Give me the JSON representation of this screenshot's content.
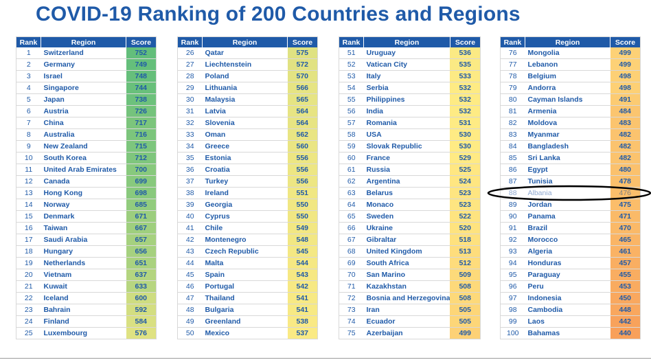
{
  "title": "COVID-19 Ranking of 200 Countries and Regions",
  "headers": {
    "rank": "Rank",
    "region": "Region",
    "score": "Score"
  },
  "tables": [
    {
      "rows": [
        {
          "rank": "1",
          "region": "Switzerland",
          "score": "752"
        },
        {
          "rank": "2",
          "region": "Germany",
          "score": "749"
        },
        {
          "rank": "3",
          "region": "Israel",
          "score": "748"
        },
        {
          "rank": "4",
          "region": "Singapore",
          "score": "744"
        },
        {
          "rank": "5",
          "region": "Japan",
          "score": "738"
        },
        {
          "rank": "6",
          "region": "Austria",
          "score": "726"
        },
        {
          "rank": "7",
          "region": "China",
          "score": "717"
        },
        {
          "rank": "8",
          "region": "Australia",
          "score": "716"
        },
        {
          "rank": "9",
          "region": "New Zealand",
          "score": "715"
        },
        {
          "rank": "10",
          "region": "South Korea",
          "score": "712"
        },
        {
          "rank": "11",
          "region": "United Arab Emirates",
          "score": "700"
        },
        {
          "rank": "12",
          "region": "Canada",
          "score": "699"
        },
        {
          "rank": "13",
          "region": "Hong Kong",
          "score": "698"
        },
        {
          "rank": "14",
          "region": "Norway",
          "score": "685"
        },
        {
          "rank": "15",
          "region": "Denmark",
          "score": "671"
        },
        {
          "rank": "16",
          "region": "Taiwan",
          "score": "667"
        },
        {
          "rank": "17",
          "region": "Saudi Arabia",
          "score": "657"
        },
        {
          "rank": "18",
          "region": "Hungary",
          "score": "656"
        },
        {
          "rank": "19",
          "region": "Netherlands",
          "score": "651"
        },
        {
          "rank": "20",
          "region": "Vietnam",
          "score": "637"
        },
        {
          "rank": "21",
          "region": "Kuwait",
          "score": "633"
        },
        {
          "rank": "22",
          "region": "Iceland",
          "score": "600"
        },
        {
          "rank": "23",
          "region": "Bahrain",
          "score": "592"
        },
        {
          "rank": "24",
          "region": "Finland",
          "score": "584"
        },
        {
          "rank": "25",
          "region": "Luxembourg",
          "score": "576"
        }
      ]
    },
    {
      "rows": [
        {
          "rank": "26",
          "region": "Qatar",
          "score": "575"
        },
        {
          "rank": "27",
          "region": "Liechtenstein",
          "score": "572"
        },
        {
          "rank": "28",
          "region": "Poland",
          "score": "570"
        },
        {
          "rank": "29",
          "region": "Lithuania",
          "score": "566"
        },
        {
          "rank": "30",
          "region": "Malaysia",
          "score": "565"
        },
        {
          "rank": "31",
          "region": "Latvia",
          "score": "564"
        },
        {
          "rank": "32",
          "region": "Slovenia",
          "score": "564"
        },
        {
          "rank": "33",
          "region": "Oman",
          "score": "562"
        },
        {
          "rank": "34",
          "region": "Greece",
          "score": "560"
        },
        {
          "rank": "35",
          "region": "Estonia",
          "score": "556"
        },
        {
          "rank": "36",
          "region": "Croatia",
          "score": "556"
        },
        {
          "rank": "37",
          "region": "Turkey",
          "score": "556"
        },
        {
          "rank": "38",
          "region": "Ireland",
          "score": "551"
        },
        {
          "rank": "39",
          "region": "Georgia",
          "score": "550"
        },
        {
          "rank": "40",
          "region": "Cyprus",
          "score": "550"
        },
        {
          "rank": "41",
          "region": "Chile",
          "score": "549"
        },
        {
          "rank": "42",
          "region": "Montenegro",
          "score": "548"
        },
        {
          "rank": "43",
          "region": "Czech Republic",
          "score": "545"
        },
        {
          "rank": "44",
          "region": "Malta",
          "score": "544"
        },
        {
          "rank": "45",
          "region": "Spain",
          "score": "543"
        },
        {
          "rank": "46",
          "region": "Portugal",
          "score": "542"
        },
        {
          "rank": "47",
          "region": "Thailand",
          "score": "541"
        },
        {
          "rank": "48",
          "region": "Bulgaria",
          "score": "541"
        },
        {
          "rank": "49",
          "region": "Greenland",
          "score": "538"
        },
        {
          "rank": "50",
          "region": "Mexico",
          "score": "537"
        }
      ]
    },
    {
      "rows": [
        {
          "rank": "51",
          "region": "Uruguay",
          "score": "536"
        },
        {
          "rank": "52",
          "region": "Vatican City",
          "score": "535"
        },
        {
          "rank": "53",
          "region": "Italy",
          "score": "533"
        },
        {
          "rank": "54",
          "region": "Serbia",
          "score": "532"
        },
        {
          "rank": "55",
          "region": "Philippines",
          "score": "532"
        },
        {
          "rank": "56",
          "region": "India",
          "score": "532"
        },
        {
          "rank": "57",
          "region": "Romania",
          "score": "531"
        },
        {
          "rank": "58",
          "region": "USA",
          "score": "530"
        },
        {
          "rank": "59",
          "region": "Slovak Republic",
          "score": "530"
        },
        {
          "rank": "60",
          "region": "France",
          "score": "529"
        },
        {
          "rank": "61",
          "region": "Russia",
          "score": "525"
        },
        {
          "rank": "62",
          "region": "Argentina",
          "score": "524"
        },
        {
          "rank": "63",
          "region": "Belarus",
          "score": "523"
        },
        {
          "rank": "64",
          "region": "Monaco",
          "score": "523"
        },
        {
          "rank": "65",
          "region": "Sweden",
          "score": "522"
        },
        {
          "rank": "66",
          "region": "Ukraine",
          "score": "520"
        },
        {
          "rank": "67",
          "region": "Gibraltar",
          "score": "518"
        },
        {
          "rank": "68",
          "region": "United Kingdom",
          "score": "513"
        },
        {
          "rank": "69",
          "region": "South Africa",
          "score": "512"
        },
        {
          "rank": "70",
          "region": "San Marino",
          "score": "509"
        },
        {
          "rank": "71",
          "region": "Kazakhstan",
          "score": "508"
        },
        {
          "rank": "72",
          "region": "Bosnia and Herzegovina",
          "score": "508"
        },
        {
          "rank": "73",
          "region": "Iran",
          "score": "505"
        },
        {
          "rank": "74",
          "region": "Ecuador",
          "score": "505"
        },
        {
          "rank": "75",
          "region": "Azerbaijan",
          "score": "499"
        }
      ]
    },
    {
      "rows": [
        {
          "rank": "76",
          "region": "Mongolia",
          "score": "499"
        },
        {
          "rank": "77",
          "region": "Lebanon",
          "score": "499"
        },
        {
          "rank": "78",
          "region": "Belgium",
          "score": "498"
        },
        {
          "rank": "79",
          "region": "Andorra",
          "score": "498"
        },
        {
          "rank": "80",
          "region": "Cayman Islands",
          "score": "491"
        },
        {
          "rank": "81",
          "region": "Armenia",
          "score": "484"
        },
        {
          "rank": "82",
          "region": "Moldova",
          "score": "483"
        },
        {
          "rank": "83",
          "region": "Myanmar",
          "score": "482"
        },
        {
          "rank": "84",
          "region": "Bangladesh",
          "score": "482"
        },
        {
          "rank": "85",
          "region": "Sri Lanka",
          "score": "482"
        },
        {
          "rank": "86",
          "region": "Egypt",
          "score": "480"
        },
        {
          "rank": "87",
          "region": "Tunisia",
          "score": "478"
        },
        {
          "rank": "88",
          "region": "Albania",
          "score": "476"
        },
        {
          "rank": "89",
          "region": "Jordan",
          "score": "475"
        },
        {
          "rank": "90",
          "region": "Panama",
          "score": "471"
        },
        {
          "rank": "91",
          "region": "Brazil",
          "score": "470"
        },
        {
          "rank": "92",
          "region": "Morocco",
          "score": "465"
        },
        {
          "rank": "93",
          "region": "Algeria",
          "score": "461"
        },
        {
          "rank": "94",
          "region": "Honduras",
          "score": "457"
        },
        {
          "rank": "95",
          "region": "Paraguay",
          "score": "455"
        },
        {
          "rank": "96",
          "region": "Peru",
          "score": "453"
        },
        {
          "rank": "97",
          "region": "Indonesia",
          "score": "450"
        },
        {
          "rank": "98",
          "region": "Cambodia",
          "score": "448"
        },
        {
          "rank": "99",
          "region": "Laos",
          "score": "442"
        },
        {
          "rank": "100",
          "region": "Bahamas",
          "score": "440"
        }
      ]
    }
  ],
  "highlighted_rank": "88",
  "colors": {
    "header_bg": "#1f5aa8",
    "text": "#1f5aa8",
    "score_scale": [
      "#63be7b",
      "#ffeb84",
      "#f8a05a"
    ],
    "annotation_ellipse": "#000000"
  }
}
